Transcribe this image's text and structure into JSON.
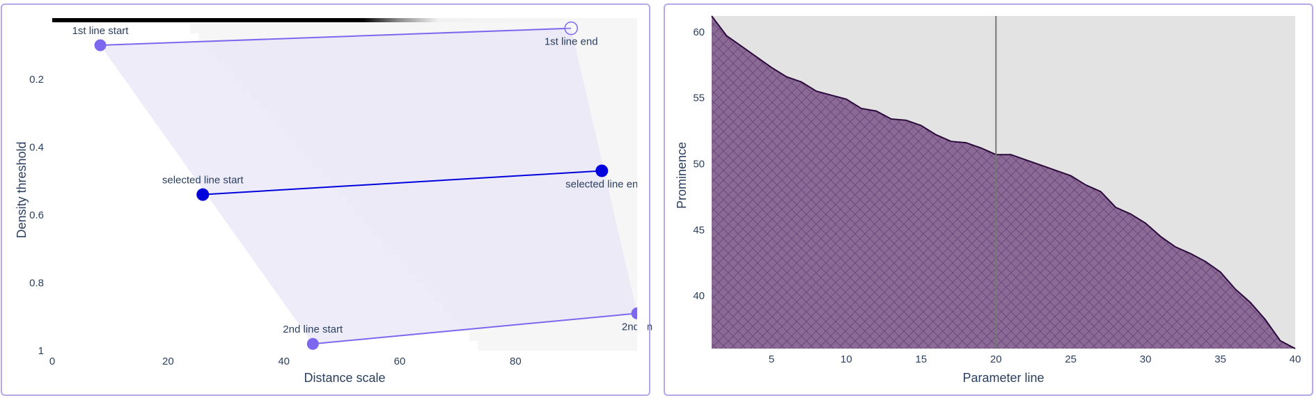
{
  "left_chart_data": {
    "type": "scatter",
    "xlabel": "Distance scale",
    "ylabel": "Density threshold",
    "xlim": [
      0,
      101
    ],
    "ylim": [
      0.02,
      1
    ],
    "y_reversed": true,
    "xticks": [
      0,
      20,
      40,
      60,
      80
    ],
    "yticks": [
      0.2,
      0.4,
      0.6,
      0.8,
      1
    ],
    "colors": {
      "line_light": "#7b68ee",
      "line_selected": "#0000dd",
      "band_fill": "#e8e6f7",
      "heat_bg": "#f6f6f6"
    },
    "lines": [
      {
        "name": "1st line",
        "start": {
          "x": 8.3,
          "y": 0.1,
          "label": "1st line start"
        },
        "end": {
          "x": 89.6,
          "y": 0.05,
          "label": "1st line end"
        },
        "style": "light",
        "end_open": true
      },
      {
        "name": "selected line",
        "start": {
          "x": 26,
          "y": 0.54,
          "label": "selected line start"
        },
        "end": {
          "x": 94.9,
          "y": 0.47,
          "label": "selected line en"
        },
        "style": "selected"
      },
      {
        "name": "2nd line",
        "start": {
          "x": 45,
          "y": 0.98,
          "label": "2nd line start"
        },
        "end": {
          "x": 101,
          "y": 0.89,
          "label": "2nd lin"
        },
        "style": "light"
      }
    ]
  },
  "right_chart_data": {
    "type": "area",
    "xlabel": "Parameter line",
    "ylabel": "Prominence",
    "xlim": [
      1,
      40
    ],
    "ylim": [
      36,
      61.2
    ],
    "xticks": [
      5,
      10,
      15,
      20,
      25,
      30,
      35,
      40
    ],
    "yticks": [
      40,
      45,
      50,
      55,
      60
    ],
    "selected_x": 20,
    "colors": {
      "fill": "#8b6a96",
      "hatch": "#6d4a7c",
      "line": "#2a0a3a",
      "bg": "#e3e3e3",
      "marker_line": "#777777"
    },
    "x": [
      1,
      2,
      3,
      4,
      5,
      6,
      7,
      8,
      9,
      10,
      11,
      12,
      13,
      14,
      15,
      16,
      17,
      18,
      19,
      20,
      21,
      22,
      23,
      24,
      25,
      26,
      27,
      28,
      29,
      30,
      31,
      32,
      33,
      34,
      35,
      36,
      37,
      38,
      39,
      40
    ],
    "y": [
      61.2,
      59.7,
      58.9,
      58.1,
      57.3,
      56.6,
      56.2,
      55.5,
      55.2,
      54.9,
      54.2,
      54.0,
      53.4,
      53.3,
      52.9,
      52.2,
      51.7,
      51.6,
      51.2,
      50.7,
      50.7,
      50.3,
      49.9,
      49.5,
      49.1,
      48.4,
      47.9,
      46.7,
      46.2,
      45.5,
      44.5,
      43.7,
      43.2,
      42.6,
      41.8,
      40.5,
      39.5,
      38.2,
      36.6,
      36.0
    ]
  }
}
